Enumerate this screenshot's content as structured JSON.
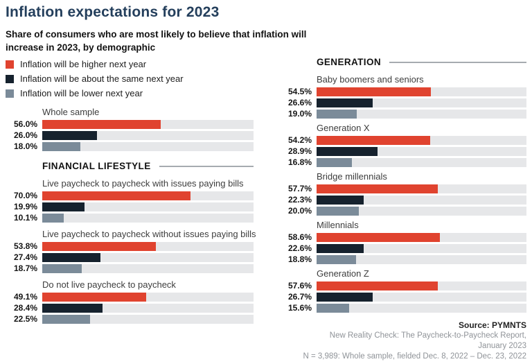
{
  "title": "Inflation expectations for 2023",
  "subtitle": "Share of consumers who are most likely to believe that inflation will\nincrease in 2023, by demographic",
  "colors": {
    "higher": "#e0432f",
    "same": "#16222e",
    "lower": "#7b8b99",
    "track": "#e6e7e9",
    "title_text": "#243f5c",
    "rule": "#a6abb0"
  },
  "legend": [
    {
      "label": "Inflation will be higher next year",
      "color": "#e0432f"
    },
    {
      "label": "Inflation will be about the same next year",
      "color": "#16222e"
    },
    {
      "label": "Inflation will be lower next year",
      "color": "#7b8b99"
    }
  ],
  "chart_data": {
    "type": "bar",
    "orientation": "horizontal",
    "unit": "percent",
    "value_range": [
      0,
      100
    ],
    "legend_position": "top-left",
    "series_names": [
      "Inflation will be higher next year",
      "Inflation will be about the same next year",
      "Inflation will be lower next year"
    ],
    "sections": [
      {
        "header": null,
        "column": "left",
        "groups": [
          {
            "label": "Whole sample",
            "values": [
              56.0,
              26.0,
              18.0
            ]
          }
        ]
      },
      {
        "header": "FINANCIAL LIFESTYLE",
        "column": "left",
        "groups": [
          {
            "label": "Live paycheck to paycheck with issues paying bills",
            "values": [
              70.0,
              19.9,
              10.1
            ]
          },
          {
            "label": "Live paycheck to paycheck without issues paying bills",
            "values": [
              53.8,
              27.4,
              18.7
            ]
          },
          {
            "label": "Do not live paycheck to paycheck",
            "values": [
              49.1,
              28.4,
              22.5
            ]
          }
        ]
      },
      {
        "header": "GENERATION",
        "column": "right",
        "groups": [
          {
            "label": "Baby boomers and seniors",
            "values": [
              54.5,
              26.6,
              19.0
            ]
          },
          {
            "label": "Generation X",
            "values": [
              54.2,
              28.9,
              16.8
            ]
          },
          {
            "label": "Bridge millennials",
            "values": [
              57.7,
              22.3,
              20.0
            ]
          },
          {
            "label": "Millennials",
            "values": [
              58.6,
              22.6,
              18.8
            ]
          },
          {
            "label": "Generation Z",
            "values": [
              57.6,
              26.7,
              15.6
            ]
          }
        ]
      }
    ]
  },
  "source": {
    "lines": [
      "Source: PYMNTS",
      "New Reality Check: The Paycheck-to-Paycheck Report,",
      "January 2023",
      "N = 3,989: Whole sample, fielded Dec. 8, 2022 – Dec. 23, 2022"
    ]
  }
}
